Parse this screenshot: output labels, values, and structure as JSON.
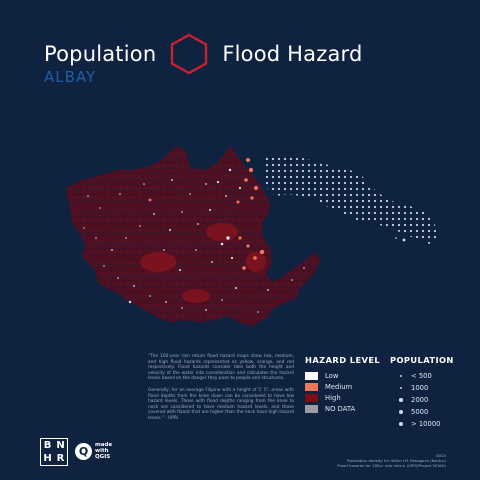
{
  "header": {
    "title_left": "Population",
    "title_right": "Flood Hazard",
    "subtitle": "ALBAY"
  },
  "description": {
    "p1": "\"The 100-year rain return flood hazard maps show low, medium, and high flood hazards represented as yellow, orange, and red respectively. Flood hazards consider take both the height and velocity of the water into consideration and calculates the hazard levels based on the danger they pose to people and structures.",
    "p2": "Generally, for an average Filipino with a height of 5' 5\", areas with flood depths from the knee down can be considered to have low hazard levels. Those with flood depths ranging from the knee to neck are considered to have medium hazard levels, and those covered with floods that are higher than the neck have high hazard levels.\" - UPRI"
  },
  "legend": {
    "hazard_title": "HAZARD LEVEL",
    "hazard": [
      {
        "label": "Low",
        "color": "#ffffff"
      },
      {
        "label": "Medium",
        "color": "#f0775a"
      },
      {
        "label": "High",
        "color": "#7a0f16"
      },
      {
        "label": "NO DATA",
        "color": "#9b9ea4"
      }
    ],
    "population_title": "POPULATION",
    "population": [
      "< 500",
      "1000",
      "2000",
      "5000",
      "> 10000"
    ]
  },
  "colors": {
    "background": "#0f2341",
    "accent_hex": "#c8202e",
    "subtitle": "#1f5fa8",
    "hexbin_outline": "#3a1d36"
  },
  "branding": {
    "bnhr_letters": [
      "B",
      "N",
      "H",
      "R"
    ],
    "qgis_q": "Q",
    "qgis_line1": "made",
    "qgis_line2": "with",
    "qgis_line3": "QGIS"
  },
  "data_note": {
    "heading": "DATA",
    "line1": "Population density for 400m H3 Hexagons (Kontur)",
    "line2": "Flood hazards for 100yr rain return (UPRI/Project NOAH)"
  }
}
